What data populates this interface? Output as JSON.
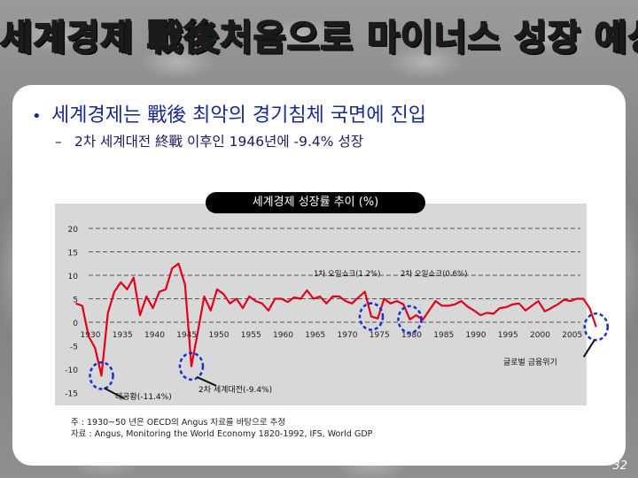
{
  "title": "세계경제 戰後처음으로 마이너스 성장 예상",
  "bullets": {
    "main": "세계경제는 戰後 최악의 경기침체 국면에 진입",
    "sub": "2차 세계대전 終戰 이후인 1946년에 -9.4% 성장"
  },
  "colors": {
    "line": "#e0001b",
    "circle": "#1a2fd0",
    "title_fill": "#ff1a1a"
  },
  "chart_data": {
    "type": "line",
    "title": "세계경제 성장률 추이 (%)",
    "ylim": [
      -15,
      20
    ],
    "yticks": [
      "20",
      "15",
      "10",
      "5",
      "0",
      "-5",
      "-10",
      "-15"
    ],
    "xticks": [
      "1930",
      "1935",
      "1940",
      "1945",
      "1950",
      "1955",
      "1960",
      "1965",
      "1970",
      "1975",
      "1980",
      "1985",
      "1990",
      "1995",
      "2000",
      "2005"
    ],
    "grid": true,
    "series": [
      {
        "x": [
          1928,
          1929,
          1930,
          1931,
          1932,
          1933,
          1934,
          1935,
          1936,
          1937,
          1938,
          1939,
          1940,
          1941,
          1942,
          1943,
          1944,
          1945,
          1946,
          1947,
          1948,
          1949,
          1950,
          1951,
          1952,
          1953,
          1954,
          1955,
          1956,
          1957,
          1958,
          1959,
          1960,
          1961,
          1962,
          1963,
          1964,
          1965,
          1966,
          1967,
          1968,
          1969,
          1970,
          1971,
          1972,
          1973,
          1974,
          1975,
          1976,
          1977,
          1978,
          1979,
          1980,
          1981,
          1982,
          1983,
          1984,
          1985,
          1986,
          1987,
          1988,
          1989,
          1990,
          1991,
          1992,
          1993,
          1994,
          1995,
          1996,
          1997,
          1998,
          1999,
          2000,
          2001,
          2002,
          2003,
          2004,
          2005,
          2006,
          2007,
          2008,
          2009
        ],
        "values": [
          4.0,
          3.5,
          -3.0,
          -5.5,
          -11.4,
          2.0,
          6.5,
          8.5,
          7.0,
          9.5,
          1.5,
          5.5,
          3.0,
          6.5,
          7.0,
          11.5,
          12.5,
          8.0,
          -9.4,
          -2.0,
          5.5,
          2.5,
          7.0,
          6.0,
          4.0,
          5.0,
          3.0,
          5.5,
          4.5,
          4.0,
          2.5,
          5.0,
          5.0,
          4.3,
          5.3,
          5.0,
          6.8,
          5.0,
          5.5,
          4.0,
          5.5,
          5.5,
          4.5,
          4.0,
          5.3,
          6.5,
          1.2,
          0.8,
          5.0,
          4.0,
          4.5,
          3.8,
          0.6,
          1.5,
          0.5,
          2.5,
          4.5,
          3.5,
          3.5,
          3.8,
          4.5,
          3.3,
          2.5,
          1.5,
          2.0,
          1.8,
          3.0,
          3.2,
          3.8,
          4.0,
          2.5,
          3.5,
          4.5,
          2.3,
          3.0,
          3.8,
          4.8,
          4.5,
          5.0,
          5.0,
          3.0,
          -1.0
        ]
      }
    ],
    "annotations": [
      {
        "label": "대공황(-11.4%)",
        "year": 1932,
        "value": -11.4
      },
      {
        "label": "2차 세계대전(-9.4%)",
        "year": 1946,
        "value": -9.4
      },
      {
        "label": "1차 오일쇼크(1.2%)",
        "year": 1974,
        "value": 1.2
      },
      {
        "label": "2차 오일쇼크(0.6%)",
        "year": 1980,
        "value": 0.6
      },
      {
        "label": "글로벌 금융위기",
        "year": 2009,
        "value": -1.0
      }
    ]
  },
  "notes": {
    "line1": "주 : 1930~50 년은 OECD의 Angus 자료를 바탕으로 추정",
    "line2": "자료 : Angus, Monitoring the World Economy 1820-1992, IFS, World GDP"
  },
  "page_number": "32"
}
